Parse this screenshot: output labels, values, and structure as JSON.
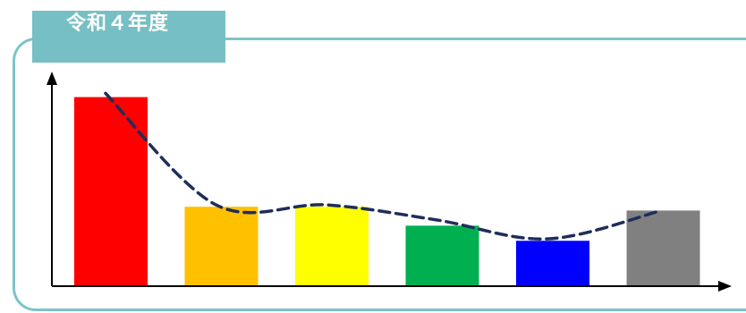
{
  "chart_data": {
    "type": "bar",
    "title": "令和４年度",
    "xlabel": "",
    "ylabel": "",
    "categories": [
      "",
      "",
      "",
      "",
      "",
      ""
    ],
    "values": [
      100,
      42,
      42,
      32,
      24,
      40
    ],
    "colors": [
      "#ff0000",
      "#ffc000",
      "#ffff00",
      "#00b050",
      "#0000ff",
      "#808080"
    ],
    "ylim": [
      0,
      105
    ],
    "trendline": {
      "style": "dashed",
      "color": "#1f2d5a",
      "values": [
        102,
        43,
        43,
        35,
        25,
        40
      ]
    },
    "grid": false,
    "legend": "none",
    "frame_color": "#7cc4c8",
    "title_background": "#76bfc4"
  }
}
